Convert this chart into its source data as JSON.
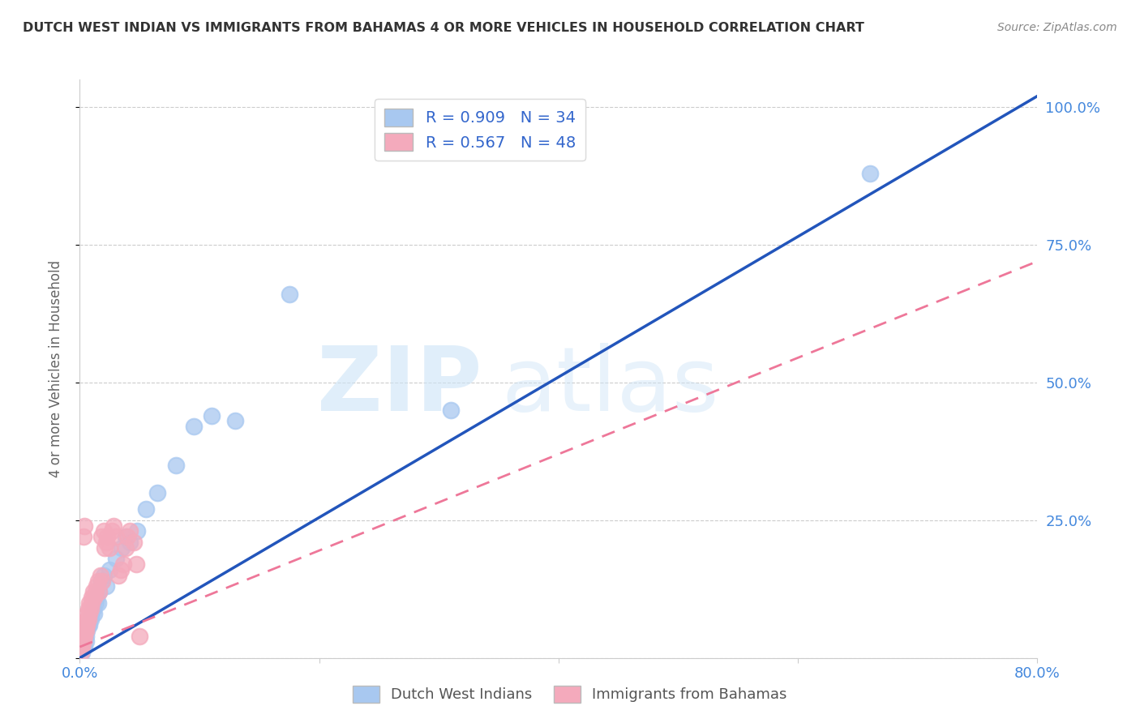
{
  "title": "DUTCH WEST INDIAN VS IMMIGRANTS FROM BAHAMAS 4 OR MORE VEHICLES IN HOUSEHOLD CORRELATION CHART",
  "source": "Source: ZipAtlas.com",
  "ylabel": "4 or more Vehicles in Household",
  "xlim": [
    0.0,
    0.8
  ],
  "ylim": [
    0.0,
    1.05
  ],
  "xticks": [
    0.0,
    0.2,
    0.4,
    0.6,
    0.8
  ],
  "xticklabels": [
    "0.0%",
    "",
    "",
    "",
    "80.0%"
  ],
  "yticks": [
    0.0,
    0.25,
    0.5,
    0.75,
    1.0
  ],
  "yticklabels_right": [
    "",
    "25.0%",
    "50.0%",
    "75.0%",
    "100.0%"
  ],
  "blue_color": "#a8c8f0",
  "pink_color": "#f4aabc",
  "blue_line_color": "#2255bb",
  "pink_line_color": "#ee7799",
  "R_blue": 0.909,
  "N_blue": 34,
  "R_pink": 0.567,
  "N_pink": 48,
  "legend_blue_label": "Dutch West Indians",
  "legend_pink_label": "Immigrants from Bahamas",
  "blue_scatter_x": [
    0.002,
    0.003,
    0.004,
    0.005,
    0.005,
    0.006,
    0.007,
    0.008,
    0.009,
    0.01,
    0.011,
    0.012,
    0.013,
    0.014,
    0.015,
    0.016,
    0.018,
    0.02,
    0.022,
    0.025,
    0.03,
    0.035,
    0.038,
    0.042,
    0.048,
    0.055,
    0.065,
    0.08,
    0.095,
    0.11,
    0.13,
    0.175,
    0.31,
    0.66
  ],
  "blue_scatter_y": [
    0.01,
    0.02,
    0.02,
    0.03,
    0.04,
    0.05,
    0.06,
    0.06,
    0.07,
    0.08,
    0.09,
    0.08,
    0.1,
    0.11,
    0.1,
    0.12,
    0.14,
    0.15,
    0.13,
    0.16,
    0.18,
    0.2,
    0.22,
    0.21,
    0.23,
    0.27,
    0.3,
    0.35,
    0.42,
    0.44,
    0.43,
    0.66,
    0.45,
    0.88
  ],
  "pink_scatter_x": [
    0.001,
    0.001,
    0.002,
    0.002,
    0.003,
    0.003,
    0.004,
    0.004,
    0.005,
    0.005,
    0.006,
    0.006,
    0.006,
    0.007,
    0.007,
    0.008,
    0.008,
    0.009,
    0.01,
    0.01,
    0.011,
    0.012,
    0.013,
    0.014,
    0.015,
    0.016,
    0.017,
    0.018,
    0.019,
    0.02,
    0.021,
    0.022,
    0.023,
    0.025,
    0.027,
    0.028,
    0.03,
    0.032,
    0.034,
    0.036,
    0.038,
    0.04,
    0.042,
    0.045,
    0.047,
    0.05,
    0.003,
    0.004
  ],
  "pink_scatter_y": [
    0.01,
    0.02,
    0.02,
    0.03,
    0.03,
    0.04,
    0.04,
    0.05,
    0.05,
    0.06,
    0.06,
    0.07,
    0.08,
    0.07,
    0.09,
    0.08,
    0.1,
    0.09,
    0.1,
    0.11,
    0.12,
    0.11,
    0.12,
    0.13,
    0.14,
    0.12,
    0.15,
    0.22,
    0.14,
    0.23,
    0.2,
    0.21,
    0.22,
    0.2,
    0.23,
    0.24,
    0.22,
    0.15,
    0.16,
    0.17,
    0.2,
    0.22,
    0.23,
    0.21,
    0.17,
    0.04,
    0.22,
    0.24
  ],
  "blue_line_x": [
    0.0,
    0.8
  ],
  "blue_line_y": [
    0.0,
    1.02
  ],
  "pink_line_x": [
    0.0,
    0.8
  ],
  "pink_line_y": [
    0.02,
    0.72
  ]
}
